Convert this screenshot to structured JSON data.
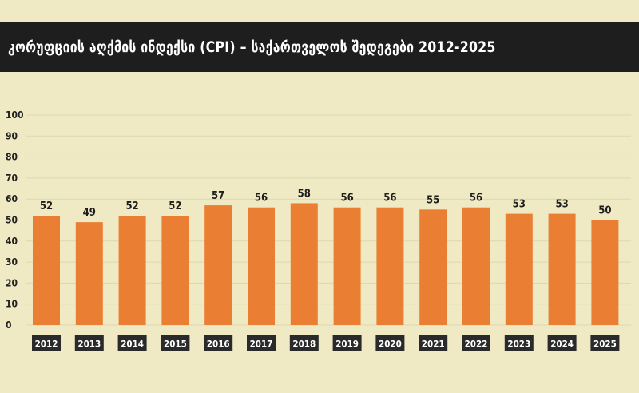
{
  "title": "კორუფციის აღქმის ინდექსი (CPI) – საქართველოს შედეგები 2012-2025",
  "colors": {
    "background": "#efeac3",
    "title_bar": "#1e1e1e",
    "bar": "#ea7f33",
    "year_label_bg": "#2a2a2a",
    "grid": "#ddd8b0"
  },
  "chart_data": {
    "type": "bar",
    "title": "კორუფციის აღქმის ინდექსი (CPI) – საქართველოს შედეგები 2012-2025",
    "categories": [
      "2012",
      "2013",
      "2014",
      "2015",
      "2016",
      "2017",
      "2018",
      "2019",
      "2020",
      "2021",
      "2022",
      "2023",
      "2024",
      "2025"
    ],
    "values": [
      52,
      49,
      52,
      52,
      57,
      56,
      58,
      56,
      56,
      55,
      56,
      53,
      53,
      50
    ],
    "ylim": [
      0,
      100
    ],
    "yticks": [
      0,
      10,
      20,
      30,
      40,
      50,
      60,
      70,
      80,
      90,
      100
    ],
    "grid": true,
    "data_labels": true
  }
}
